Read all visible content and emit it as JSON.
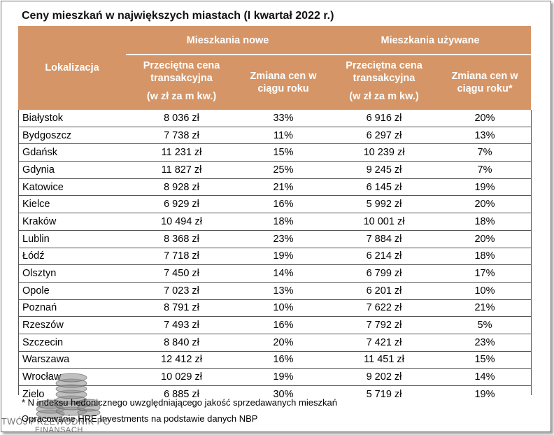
{
  "title": "Ceny mieszkań w największych miastach (I kwartał 2022 r.)",
  "header": {
    "location": "Lokalizacja",
    "new_group": "Mieszkania nowe",
    "used_group": "Mieszkania używane",
    "price_label": "Przeciętna cena transakcyjna",
    "price_unit": "(w zł za m kw.)",
    "change_label_new": "Zmiana cen w ciągu roku",
    "change_label_used": "Zmiana cen w ciągu roku*"
  },
  "rows": [
    {
      "city": "Białystok",
      "new_price": "8 036 zł",
      "new_change": "33%",
      "used_price": "6 916 zł",
      "used_change": "20%"
    },
    {
      "city": "Bydgoszcz",
      "new_price": "7 738 zł",
      "new_change": "11%",
      "used_price": "6 297 zł",
      "used_change": "13%"
    },
    {
      "city": "Gdańsk",
      "new_price": "11 231 zł",
      "new_change": "15%",
      "used_price": "10 239 zł",
      "used_change": "7%"
    },
    {
      "city": "Gdynia",
      "new_price": "11 827 zł",
      "new_change": "25%",
      "used_price": "9 245 zł",
      "used_change": "7%"
    },
    {
      "city": "Katowice",
      "new_price": "8 928 zł",
      "new_change": "21%",
      "used_price": "6 145 zł",
      "used_change": "19%"
    },
    {
      "city": "Kielce",
      "new_price": "6 929 zł",
      "new_change": "16%",
      "used_price": "5 992 zł",
      "used_change": "20%"
    },
    {
      "city": "Kraków",
      "new_price": "10 494 zł",
      "new_change": "18%",
      "used_price": "10 001 zł",
      "used_change": "18%"
    },
    {
      "city": "Lublin",
      "new_price": "8 368 zł",
      "new_change": "23%",
      "used_price": "7 884 zł",
      "used_change": "20%"
    },
    {
      "city": "Łódź",
      "new_price": "7 718 zł",
      "new_change": "19%",
      "used_price": "6 214 zł",
      "used_change": "18%"
    },
    {
      "city": "Olsztyn",
      "new_price": "7 450 zł",
      "new_change": "14%",
      "used_price": "6 799 zł",
      "used_change": "17%"
    },
    {
      "city": "Opole",
      "new_price": "7 023 zł",
      "new_change": "13%",
      "used_price": "6 201 zł",
      "used_change": "10%"
    },
    {
      "city": "Poznań",
      "new_price": "8 791 zł",
      "new_change": "10%",
      "used_price": "7 622 zł",
      "used_change": "21%"
    },
    {
      "city": "Rzeszów",
      "new_price": "7 493 zł",
      "new_change": "16%",
      "used_price": "7 792 zł",
      "used_change": "5%"
    },
    {
      "city": "Szczecin",
      "new_price": "8 840 zł",
      "new_change": "20%",
      "used_price": "7 421 zł",
      "used_change": "23%"
    },
    {
      "city": "Warszawa",
      "new_price": "12 412 zł",
      "new_change": "16%",
      "used_price": "11 451 zł",
      "used_change": "15%"
    },
    {
      "city": "Wrocław",
      "new_price": "10 029 zł",
      "new_change": "19%",
      "used_price": "9 202 zł",
      "used_change": "14%"
    },
    {
      "city": "Zielo",
      "new_price": "6 885 zł",
      "new_change": "30%",
      "used_price": "5 719 zł",
      "used_change": "19%"
    }
  ],
  "footnote": "* N              indeksu hedonicznego uwzględniającego jakość sprzedawanych mieszkań",
  "source": "Opracowanie HRE Investments na podstawie danych NBP",
  "watermark": {
    "line1": "TWÓJ PRZEWODNIK PO",
    "line2": "FINANSACH",
    "icon": "coins-stack-icon"
  },
  "colors": {
    "header_bg": "#d59566",
    "header_text": "#ffffff"
  }
}
